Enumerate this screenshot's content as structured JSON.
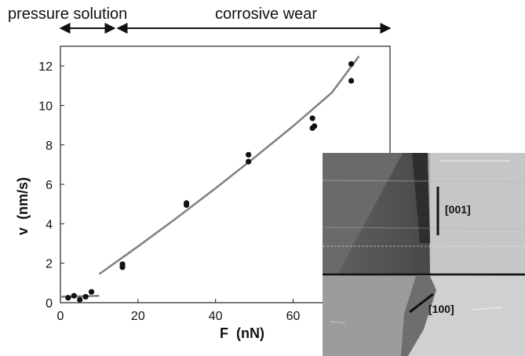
{
  "regime_labels": {
    "left": "pressure solution",
    "right": "corrosive wear"
  },
  "chart_data": {
    "type": "scatter",
    "xlabel": "F  (nN)",
    "ylabel": "v  (nm/s)",
    "xlim": [
      0,
      85
    ],
    "ylim": [
      0,
      13
    ],
    "x_ticks": [
      0,
      20,
      40,
      60
    ],
    "y_ticks": [
      0,
      2,
      4,
      6,
      8,
      10,
      12
    ],
    "grid": false,
    "points": [
      {
        "x": 2,
        "y": 0.25
      },
      {
        "x": 3.5,
        "y": 0.35
      },
      {
        "x": 5,
        "y": 0.15
      },
      {
        "x": 6.5,
        "y": 0.3
      },
      {
        "x": 8,
        "y": 0.55
      },
      {
        "x": 16,
        "y": 1.95
      },
      {
        "x": 16,
        "y": 1.8
      },
      {
        "x": 32.5,
        "y": 5.05
      },
      {
        "x": 32.5,
        "y": 4.95
      },
      {
        "x": 48.5,
        "y": 7.5
      },
      {
        "x": 48.5,
        "y": 7.15
      },
      {
        "x": 65,
        "y": 9.35
      },
      {
        "x": 65.5,
        "y": 8.95
      },
      {
        "x": 65,
        "y": 8.85
      },
      {
        "x": 75,
        "y": 12.1
      },
      {
        "x": 75,
        "y": 11.25
      }
    ],
    "fit_lines": [
      {
        "x": [
          0,
          10
        ],
        "y": [
          0.3,
          0.35
        ]
      },
      {
        "x": [
          10,
          20,
          30,
          40,
          50,
          60,
          70,
          77
        ],
        "y": [
          1.45,
          2.85,
          4.3,
          5.8,
          7.35,
          8.95,
          10.65,
          12.5
        ]
      }
    ]
  },
  "afm_image": {
    "direction_labels": [
      "[001]",
      "[100]"
    ]
  },
  "colors": {
    "point": "#111111",
    "fit": "#808080",
    "axis": "#222222"
  }
}
